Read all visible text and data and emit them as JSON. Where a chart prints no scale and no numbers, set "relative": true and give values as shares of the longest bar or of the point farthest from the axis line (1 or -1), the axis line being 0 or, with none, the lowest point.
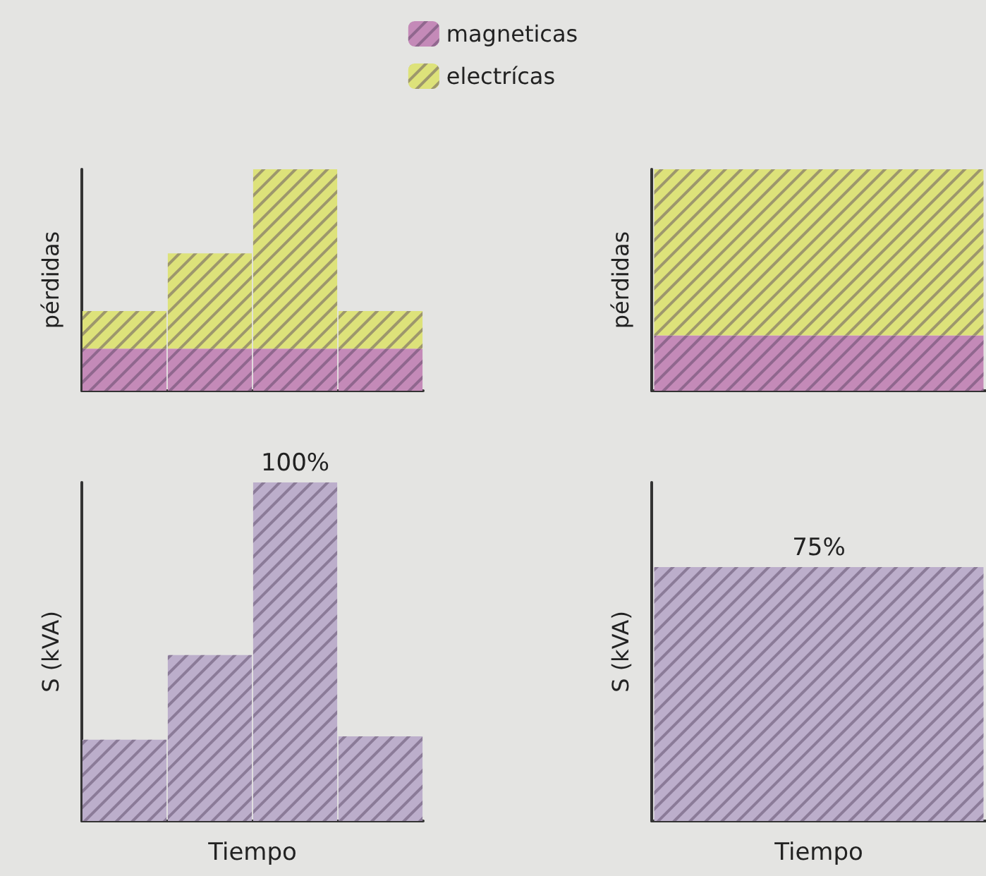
{
  "chart_data": [
    {
      "type": "bar",
      "stacked": true,
      "relative": true,
      "ylabel": "pérdidas",
      "categories": [
        null,
        null,
        null,
        null
      ],
      "legend": "top",
      "series": [
        {
          "name": "magneticas",
          "color": "#c48ab8",
          "values": [
            0.19,
            0.19,
            0.19,
            0.19
          ]
        },
        {
          "name": "electrícas",
          "color": "#dde27a",
          "values": [
            0.17,
            0.43,
            0.81,
            0.17
          ]
        }
      ]
    },
    {
      "type": "bar",
      "stacked": true,
      "relative": true,
      "ylabel": "pérdidas",
      "categories": [
        null
      ],
      "series": [
        {
          "color": "#c48ab8",
          "values": [
            0.25
          ]
        },
        {
          "color": "#dde27a",
          "values": [
            0.75
          ]
        }
      ]
    },
    {
      "type": "bar",
      "ylim": [
        0,
        100
      ],
      "tick_labels": false,
      "ylabel": "S (kVA)",
      "xlabel": "Tiempo",
      "categories": [
        null,
        null,
        null,
        null
      ],
      "series": [
        {
          "color": "#bcaecb",
          "values": [
            24,
            49,
            100,
            25
          ],
          "value_labels": [
            null,
            null,
            "100%",
            null
          ]
        }
      ]
    },
    {
      "type": "bar",
      "ylim": [
        0,
        100
      ],
      "tick_labels": false,
      "ylabel": "S (kVA)",
      "xlabel": "Tiempo",
      "categories": [
        null
      ],
      "series": [
        {
          "color": "#bcaecb",
          "values": [
            75
          ],
          "value_labels": [
            "75%"
          ]
        }
      ]
    }
  ]
}
